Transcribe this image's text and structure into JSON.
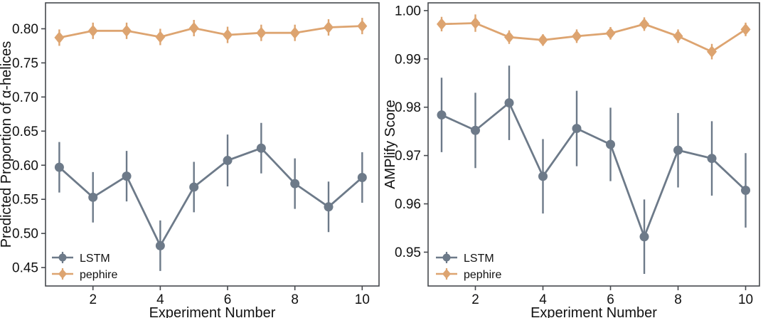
{
  "figure": {
    "background": "#ffffff",
    "axis_color": "#46494e",
    "text_color": "#111111"
  },
  "series_colors": {
    "LSTM": "#6d7a89",
    "pephire": "#dda470"
  },
  "chart_data": [
    {
      "type": "line",
      "panel": "left",
      "title": "",
      "xlabel": "Experiment Number",
      "ylabel": "Predicted Proportion of α-helices",
      "x": [
        1,
        2,
        3,
        4,
        5,
        6,
        7,
        8,
        9,
        10
      ],
      "xticks": [
        2,
        4,
        6,
        8,
        10
      ],
      "xtick_labels": [
        "2",
        "4",
        "6",
        "8",
        "10"
      ],
      "xlim": [
        0.59,
        10.5
      ],
      "ylim": [
        0.423,
        0.838
      ],
      "yticks": [
        0.45,
        0.5,
        0.55,
        0.6,
        0.65,
        0.7,
        0.75,
        0.8
      ],
      "ytick_labels": [
        "0.45",
        "0.50",
        "0.55",
        "0.60",
        "0.65",
        "0.70",
        "0.75",
        "0.80"
      ],
      "grid": false,
      "legend_position": "lower left",
      "series": [
        {
          "name": "LSTM",
          "color": "#6d7a89",
          "marker": "circle",
          "values": [
            0.597,
            0.553,
            0.584,
            0.482,
            0.568,
            0.607,
            0.625,
            0.573,
            0.539,
            0.582
          ],
          "errors": [
            0.037,
            0.037,
            0.037,
            0.037,
            0.037,
            0.038,
            0.037,
            0.037,
            0.037,
            0.037
          ]
        },
        {
          "name": "pephire",
          "color": "#dda470",
          "marker": "diamond",
          "values": [
            0.787,
            0.797,
            0.797,
            0.788,
            0.801,
            0.791,
            0.794,
            0.794,
            0.802,
            0.804
          ],
          "errors": [
            0.012,
            0.012,
            0.012,
            0.012,
            0.012,
            0.012,
            0.012,
            0.012,
            0.012,
            0.012
          ]
        }
      ]
    },
    {
      "type": "line",
      "panel": "right",
      "title": "",
      "xlabel": "Experiment Number",
      "ylabel": "AMPlify Score",
      "x": [
        1,
        2,
        3,
        4,
        5,
        6,
        7,
        8,
        9,
        10
      ],
      "xticks": [
        2,
        4,
        6,
        8,
        10
      ],
      "xtick_labels": [
        "2",
        "4",
        "6",
        "8",
        "10"
      ],
      "xlim": [
        0.6,
        10.41
      ],
      "ylim": [
        0.943,
        1.0016
      ],
      "yticks": [
        0.95,
        0.96,
        0.97,
        0.98,
        0.99,
        1.0
      ],
      "ytick_labels": [
        "0.95",
        "0.96",
        "0.97",
        "0.98",
        "0.99",
        "1.00"
      ],
      "grid": false,
      "legend_position": "lower left",
      "series": [
        {
          "name": "LSTM",
          "color": "#6d7a89",
          "marker": "circle",
          "values": [
            0.9784,
            0.9752,
            0.9809,
            0.9657,
            0.9756,
            0.9723,
            0.9532,
            0.9711,
            0.9694,
            0.9628
          ],
          "errors": [
            0.0077,
            0.0078,
            0.0077,
            0.0077,
            0.0078,
            0.0076,
            0.0077,
            0.0077,
            0.0077,
            0.0077
          ]
        },
        {
          "name": "pephire",
          "color": "#dda470",
          "marker": "diamond",
          "values": [
            0.9972,
            0.9974,
            0.9945,
            0.9939,
            0.9947,
            0.9953,
            0.9972,
            0.9947,
            0.9915,
            0.9961
          ],
          "errors": [
            0.0015,
            0.0018,
            0.0014,
            0.0012,
            0.0014,
            0.0013,
            0.0014,
            0.0014,
            0.0016,
            0.0014
          ]
        }
      ]
    }
  ]
}
